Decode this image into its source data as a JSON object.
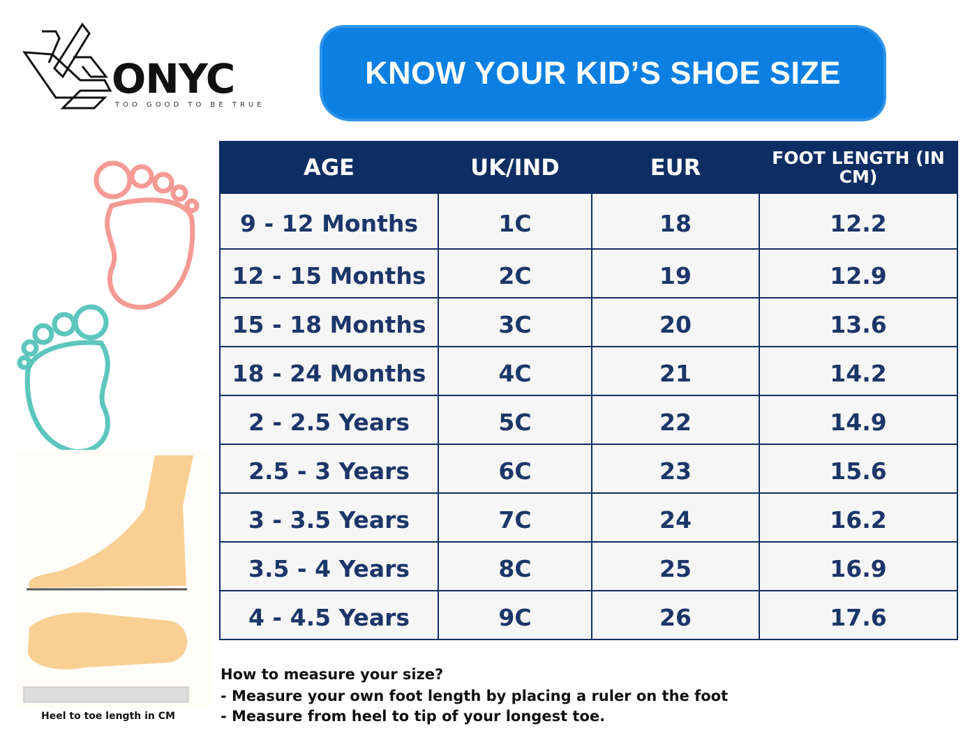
{
  "logo": {
    "brand": "ONYC",
    "tagline": "TOO GOOD TO BE TRUE"
  },
  "banner": {
    "title": "KNOW YOUR KID’S SHOE SIZE",
    "color": "#0b80e2"
  },
  "table": {
    "headers": [
      "AGE",
      "UK/IND",
      "EUR",
      "FOOT LENGTH (IN CM)"
    ],
    "rows": [
      [
        "9 - 12 Months",
        "1C",
        "18",
        "12.2"
      ],
      [
        "12 - 15 Months",
        "2C",
        "19",
        "12.9"
      ],
      [
        "15 - 18 Months",
        "3C",
        "20",
        "13.6"
      ],
      [
        "18 - 24 Months",
        "4C",
        "21",
        "14.2"
      ],
      [
        "2 - 2.5 Years",
        "5C",
        "22",
        "14.9"
      ],
      [
        "2.5 - 3 Years",
        "6C",
        "23",
        "15.6"
      ],
      [
        "3 - 3.5 Years",
        "7C",
        "24",
        "16.2"
      ],
      [
        "3.5 - 4 Years",
        "8C",
        "25",
        "16.9"
      ],
      [
        "4 - 4.5 Years",
        "9C",
        "26",
        "17.6"
      ]
    ]
  },
  "measure": {
    "question": "How to measure your size?",
    "steps": [
      "- Measure your own foot length by placing a ruler on the foot",
      "- Measure from heel to tip of your longest toe."
    ]
  },
  "illustration": {
    "caption": "Heel to toe length in CM"
  },
  "colors": {
    "header": "#0e2d63",
    "cell_text": "#1b3669",
    "pink_foot": "#f59a94",
    "teal_foot": "#5cc6bd",
    "skin": "#f9cf93"
  }
}
